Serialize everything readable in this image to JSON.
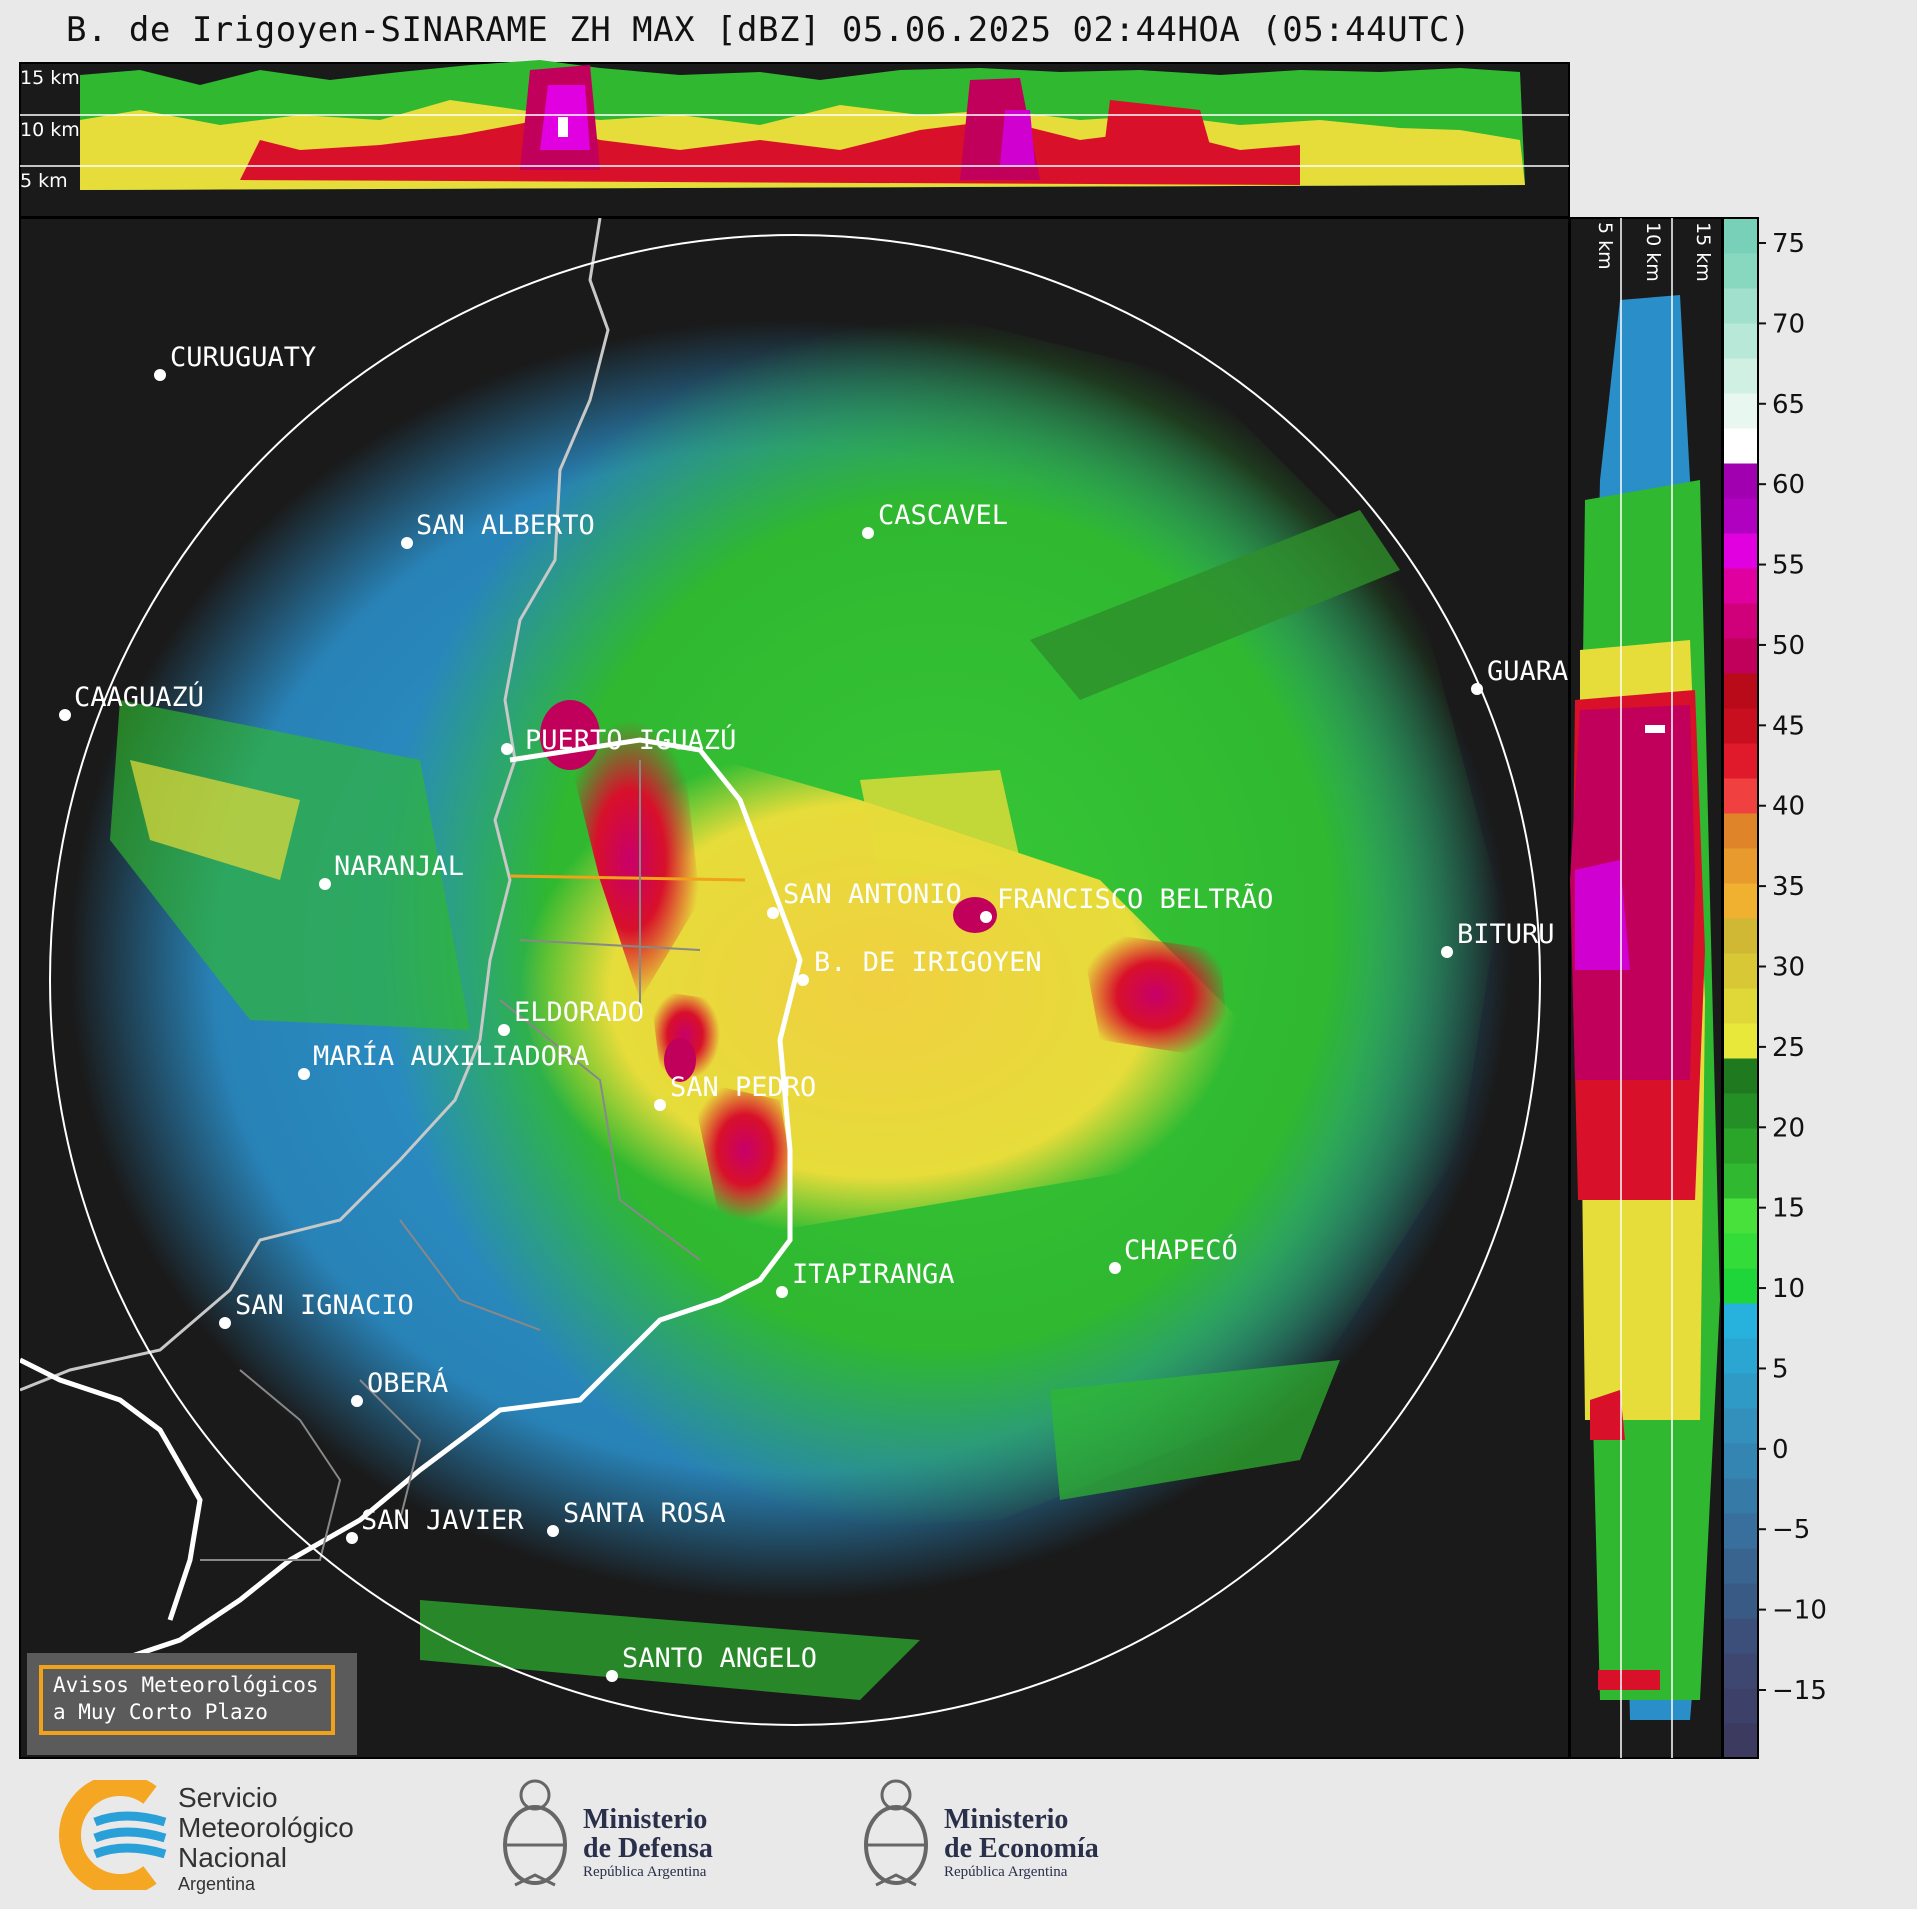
{
  "title": "B. de Irigoyen-SINARAME ZH MAX [dBZ] 05.06.2025 02:44HOA (05:44UTC)",
  "top_panel": {
    "km_labels": [
      "15 km",
      "10 km",
      "5 km"
    ]
  },
  "side_panel": {
    "km_labels": [
      "5 km",
      "10 km",
      "15 km"
    ]
  },
  "colorbar": {
    "ticks": [
      "75",
      "70",
      "65",
      "60",
      "55",
      "50",
      "45",
      "40",
      "35",
      "30",
      "25",
      "20",
      "15",
      "10",
      "5",
      "0",
      "−5",
      "−10",
      "−15"
    ]
  },
  "cities": [
    {
      "name": "CURUGUATY"
    },
    {
      "name": "SAN ALBERTO"
    },
    {
      "name": "CASCAVEL"
    },
    {
      "name": "CAAGUAZÚ"
    },
    {
      "name": "GUARA"
    },
    {
      "name": "PUERTO IGUAZÚ"
    },
    {
      "name": "NARANJAL"
    },
    {
      "name": "SAN ANTONIO"
    },
    {
      "name": "FRANCISCO BELTRÃO"
    },
    {
      "name": "BITURU"
    },
    {
      "name": "B. DE IRIGOYEN"
    },
    {
      "name": "ELDORADO"
    },
    {
      "name": "MARÍA AUXILIADORA"
    },
    {
      "name": "SAN PEDRO"
    },
    {
      "name": "ITAPIRANGA"
    },
    {
      "name": "CHAPECÓ"
    },
    {
      "name": "SAN IGNACIO"
    },
    {
      "name": "OBERÁ"
    },
    {
      "name": "SAN JAVIER"
    },
    {
      "name": "SANTA ROSA"
    },
    {
      "name": "SANTO ANGELO"
    }
  ],
  "notice": {
    "line1": "Avisos Meteorológicos",
    "line2": "a Muy Corto Plazo"
  },
  "logos": {
    "smn": {
      "line1": "Servicio",
      "line2": "Meteorológico",
      "line3": "Nacional",
      "country": "Argentina"
    },
    "defensa": {
      "line1": "Ministerio",
      "line2": "de Defensa",
      "sub": "República Argentina"
    },
    "economia": {
      "line1": "Ministerio",
      "line2": "de Economía",
      "sub": "República Argentina"
    }
  },
  "colors": {
    "background": "#1a1a1a",
    "scale": [
      "#3a3a5a",
      "#3b4a78",
      "#3a6a98",
      "#2f8fc0",
      "#2bb2e0",
      "#1fd63a",
      "#2e8f2a",
      "#e8e83a",
      "#f0b030",
      "#d81a2a",
      "#c0005a",
      "#e000e0",
      "#ffffff",
      "#b8f0e0",
      "#80e0c0"
    ]
  }
}
